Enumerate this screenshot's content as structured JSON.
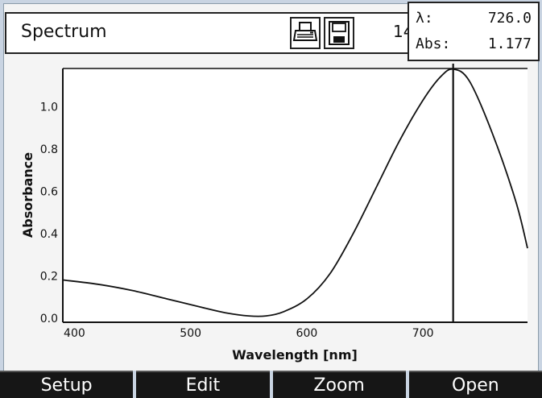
{
  "header": {
    "title": "Spectrum",
    "print_icon": "printer-icon",
    "save_icon": "floppy-disk-icon",
    "truncated_text": "14"
  },
  "readout": {
    "lambda_label": "λ:",
    "lambda_value": "726.0",
    "abs_label": "Abs:",
    "abs_value": "1.177"
  },
  "softkeys": [
    {
      "label": "Setup"
    },
    {
      "label": "Edit"
    },
    {
      "label": "Zoom"
    },
    {
      "label": "Open"
    }
  ],
  "chart_data": {
    "type": "line",
    "xlabel": "Wavelength [nm]",
    "ylabel": "Absorbance",
    "xlim": [
      390,
      790
    ],
    "ylim": [
      -0.02,
      1.18
    ],
    "xticks": [
      400,
      500,
      600,
      700
    ],
    "yticks": [
      0.0,
      0.2,
      0.4,
      0.6,
      0.8,
      1.0
    ],
    "ytick_labels": [
      "0.0",
      "0.2",
      "0.4",
      "0.6",
      "0.8",
      "1.0"
    ],
    "grid": true,
    "cursor_x": 726.0,
    "series": [
      {
        "x": [
          390,
          420,
          450,
          480,
          510,
          530,
          550,
          565,
          580,
          600,
          620,
          640,
          660,
          680,
          700,
          715,
          726,
          740,
          760,
          780,
          790
        ],
        "y": [
          0.18,
          0.16,
          0.13,
          0.09,
          0.05,
          0.025,
          0.01,
          0.01,
          0.03,
          0.09,
          0.21,
          0.4,
          0.62,
          0.84,
          1.03,
          1.14,
          1.177,
          1.12,
          0.87,
          0.55,
          0.33
        ]
      }
    ]
  },
  "colors": {
    "softkey_bg": "#161616",
    "screen_bg": "#f4f4f4",
    "curve": "#111111"
  }
}
